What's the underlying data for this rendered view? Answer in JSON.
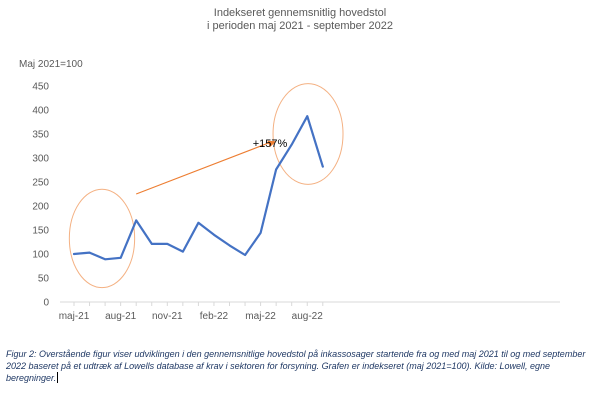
{
  "chart_data": {
    "type": "line",
    "title_lines": [
      "Indekseret gennemsnitlig hovedstol",
      "i perioden maj 2021 - september 2022"
    ],
    "ylabel": "Maj 2021=100",
    "xlabel": "",
    "ylim": [
      0,
      450
    ],
    "yticks": [
      0,
      50,
      100,
      150,
      200,
      250,
      300,
      350,
      400,
      450
    ],
    "xtick_labels": [
      "maj-21",
      "aug-21",
      "nov-21",
      "feb-22",
      "maj-22",
      "aug-22"
    ],
    "xtick_index": [
      0,
      3,
      6,
      9,
      12,
      15
    ],
    "x": [
      "maj-21",
      "jun-21",
      "jul-21",
      "aug-21",
      "sep-21",
      "okt-21",
      "nov-21",
      "dec-21",
      "jan-22",
      "feb-22",
      "mar-22",
      "apr-22",
      "maj-22",
      "jun-22",
      "jul-22",
      "aug-22",
      "sep-22"
    ],
    "series": [
      {
        "values": [
          100,
          103,
          89,
          92,
          170,
          121,
          121,
          105,
          165,
          140,
          118,
          98,
          144,
          276,
          328,
          387,
          282
        ],
        "color": "#4472c4"
      }
    ],
    "annotation": {
      "text": "+157%",
      "arrow_color": "#ed7d31",
      "arrow_from": {
        "x": 4,
        "y": 225
      },
      "arrow_to": {
        "x": 13,
        "y": 335
      }
    },
    "highlight_color": "#f4b183",
    "highlights": [
      {
        "x_from": -0.3,
        "x_to": 3.9,
        "y_from": 30,
        "y_to": 235
      },
      {
        "x_from": 12.8,
        "x_to": 17.3,
        "y_from": 245,
        "y_to": 455
      }
    ],
    "grid": false
  },
  "caption": "Figur 2: Overstående figur viser udviklingen i den gennemsnitlige hovedstol på inkassosager startende fra og med maj 2021 til og med september 2022 baseret på et udtræk af Lowells database af krav i sektoren for forsyning. Grafen er indekseret (maj 2021=100). Kilde: Lowell, egne beregninger."
}
